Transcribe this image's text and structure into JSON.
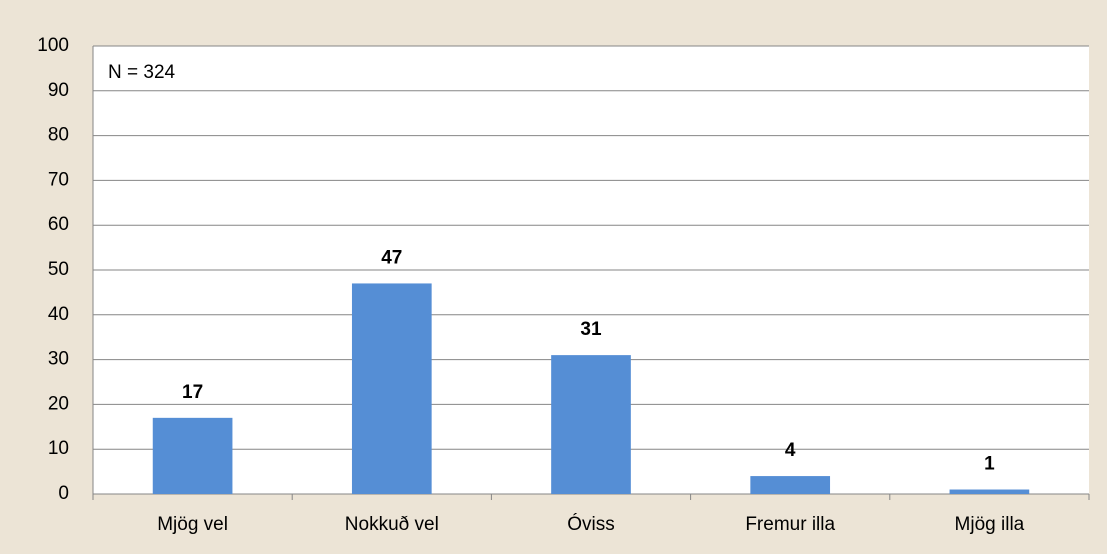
{
  "chart_data": {
    "type": "bar",
    "annotation": "N = 324",
    "categories": [
      "Mjög vel",
      "Nokkuð vel",
      "Óviss",
      "Fremur illa",
      "Mjög illa"
    ],
    "values": [
      17,
      47,
      31,
      4,
      1
    ],
    "color": "#558ed5",
    "ylim": [
      0,
      100
    ],
    "yticks": [
      0,
      10,
      20,
      30,
      40,
      50,
      60,
      70,
      80,
      90,
      100
    ],
    "grid": true
  }
}
